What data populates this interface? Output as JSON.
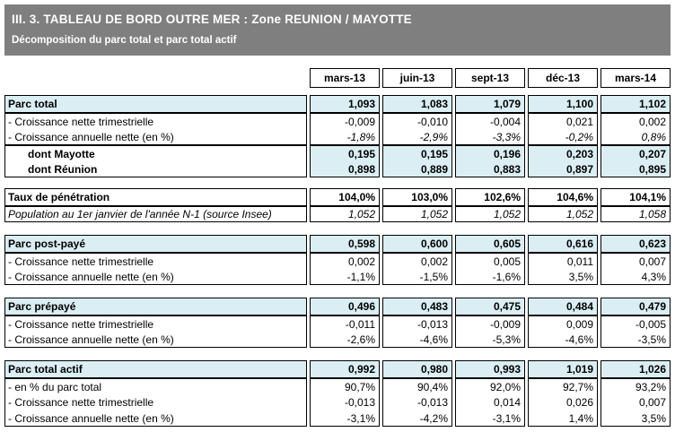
{
  "banner": {
    "title": "III. 3. TABLEAU DE BORD OUTRE MER : Zone REUNION / MAYOTTE",
    "subtitle": "Décomposition du parc total et parc total actif"
  },
  "columns": [
    "mars-13",
    "juin-13",
    "sept-13",
    "déc-13",
    "mars-14"
  ],
  "blocks": [
    {
      "name": "parc-total",
      "groups": [
        {
          "rows": [
            {
              "label": "Parc total",
              "type": "head",
              "values": [
                "1,093",
                "1,083",
                "1,079",
                "1,100",
                "1,102"
              ]
            }
          ]
        },
        {
          "rows": [
            {
              "label": "- Croissance nette trimestrielle",
              "type": "plain",
              "values": [
                "-0,009",
                "-0,010",
                "-0,004",
                "0,021",
                "0,002"
              ]
            },
            {
              "label": "- Croissance annuelle nette (en %)",
              "type": "itv",
              "values": [
                "-1,8%",
                "-2,9%",
                "-3,3%",
                "-0,2%",
                "0,8%"
              ]
            }
          ]
        },
        {
          "rows": [
            {
              "label": "dont Mayotte",
              "type": "dont",
              "values": [
                "0,195",
                "0,195",
                "0,196",
                "0,203",
                "0,207"
              ]
            },
            {
              "label": "dont Réunion",
              "type": "dont",
              "values": [
                "0,898",
                "0,889",
                "0,883",
                "0,897",
                "0,895"
              ]
            }
          ]
        }
      ]
    },
    {
      "name": "taux-de-penetration",
      "groups": [
        {
          "rows": [
            {
              "label": "Taux de pénétration",
              "type": "headwhite",
              "values": [
                "104,0%",
                "103,0%",
                "102,6%",
                "104,6%",
                "104,1%"
              ]
            }
          ]
        },
        {
          "rows": [
            {
              "label": "Population au 1er janvier de l'année N-1 (source Insee)",
              "type": "it",
              "values": [
                "1,052",
                "1,052",
                "1,052",
                "1,052",
                "1,058"
              ]
            }
          ]
        }
      ]
    },
    {
      "name": "parc-post-paye",
      "groups": [
        {
          "rows": [
            {
              "label": "Parc post-payé",
              "type": "head",
              "values": [
                "0,598",
                "0,600",
                "0,605",
                "0,616",
                "0,623"
              ]
            }
          ]
        },
        {
          "rows": [
            {
              "label": "- Croissance nette trimestrielle",
              "type": "plain",
              "values": [
                "0,002",
                "0,002",
                "0,005",
                "0,011",
                "0,007"
              ]
            },
            {
              "label": "- Croissance annuelle nette (en %)",
              "type": "plain",
              "values": [
                "-1,1%",
                "-1,5%",
                "-1,6%",
                "3,5%",
                "4,3%"
              ]
            }
          ]
        }
      ]
    },
    {
      "name": "parc-prepaye",
      "groups": [
        {
          "rows": [
            {
              "label": "Parc prépayé",
              "type": "head",
              "values": [
                "0,496",
                "0,483",
                "0,475",
                "0,484",
                "0,479"
              ]
            }
          ]
        },
        {
          "rows": [
            {
              "label": "- Croissance nette trimestrielle",
              "type": "plain",
              "values": [
                "-0,011",
                "-0,013",
                "-0,009",
                "0,009",
                "-0,005"
              ]
            },
            {
              "label": "- Croissance annuelle nette (en %)",
              "type": "plain",
              "values": [
                "-2,6%",
                "-4,6%",
                "-5,3%",
                "-4,6%",
                "-3,5%"
              ]
            }
          ]
        }
      ]
    },
    {
      "name": "parc-total-actif",
      "groups": [
        {
          "rows": [
            {
              "label": "Parc total actif",
              "type": "head",
              "values": [
                "0,992",
                "0,980",
                "0,993",
                "1,019",
                "1,026"
              ]
            }
          ]
        },
        {
          "rows": [
            {
              "label": "- en % du parc total",
              "type": "plain",
              "values": [
                "90,7%",
                "90,4%",
                "92,0%",
                "92,7%",
                "93,2%"
              ]
            },
            {
              "label": "- Croissance nette trimestrielle",
              "type": "plain",
              "values": [
                "-0,013",
                "-0,013",
                "0,014",
                "0,026",
                "0,007"
              ]
            },
            {
              "label": "- Croissance annuelle nette (en %)",
              "type": "plain",
              "values": [
                "-3,1%",
                "-4,2%",
                "-3,1%",
                "1,4%",
                "3,5%"
              ]
            }
          ]
        }
      ]
    }
  ],
  "colors": {
    "banner_bg": "#7f7f7f",
    "highlight_bg": "#daeef3",
    "border": "#000000",
    "text_on_banner": "#ffffff"
  }
}
